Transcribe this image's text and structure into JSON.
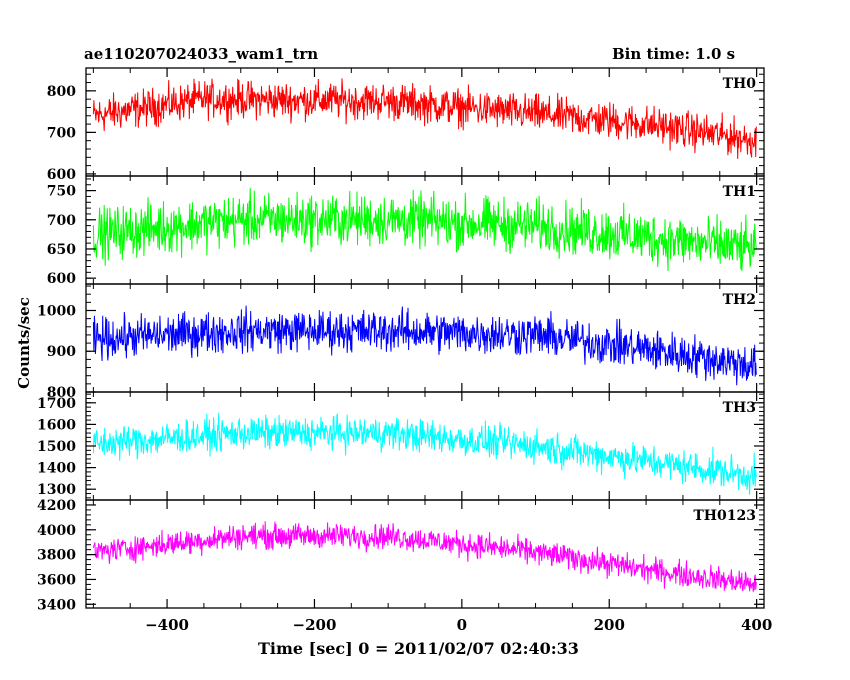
{
  "chart_data": {
    "type": "line",
    "title": "ae110207024033_wam1_trn",
    "subtitle": "Bin time: 1.0 s",
    "xlabel": "Time [sec] 0 = 2011/02/07 02:40:33",
    "ylabel": "Counts/sec",
    "xlim": [
      -510,
      410
    ],
    "xticks": [
      -400,
      -200,
      0,
      200,
      400
    ],
    "panels": [
      {
        "name": "TH0",
        "color": "#ff0000",
        "ylim": [
          595,
          855
        ],
        "yticks": [
          600,
          700,
          800
        ],
        "trend": [
          [
            -500,
            740
          ],
          [
            -350,
            780
          ],
          [
            -100,
            775
          ],
          [
            100,
            745
          ],
          [
            250,
            720
          ],
          [
            400,
            680
          ]
        ],
        "noise": 35
      },
      {
        "name": "TH1",
        "color": "#00ff00",
        "ylim": [
          590,
          775
        ],
        "yticks": [
          600,
          650,
          700,
          750
        ],
        "trend": [
          [
            -500,
            675
          ],
          [
            -300,
            700
          ],
          [
            -100,
            700
          ],
          [
            100,
            690
          ],
          [
            250,
            670
          ],
          [
            400,
            650
          ]
        ],
        "noise": 35
      },
      {
        "name": "TH2",
        "color": "#0000ff",
        "ylim": [
          800,
          1065
        ],
        "yticks": [
          800,
          900,
          1000
        ],
        "trend": [
          [
            -500,
            930
          ],
          [
            -300,
            950
          ],
          [
            -100,
            950
          ],
          [
            100,
            940
          ],
          [
            250,
            905
          ],
          [
            400,
            865
          ]
        ],
        "noise": 40
      },
      {
        "name": "TH3",
        "color": "#00ffff",
        "ylim": [
          1250,
          1750
        ],
        "yticks": [
          1300,
          1400,
          1500,
          1600,
          1700
        ],
        "trend": [
          [
            -500,
            1510
          ],
          [
            -300,
            1560
          ],
          [
            -100,
            1560
          ],
          [
            100,
            1500
          ],
          [
            250,
            1430
          ],
          [
            400,
            1360
          ]
        ],
        "noise": 60
      },
      {
        "name": "TH0123",
        "color": "#ff00ff",
        "ylim": [
          3370,
          4240
        ],
        "yticks": [
          3400,
          3600,
          3800,
          4000,
          4200
        ],
        "trend": [
          [
            -500,
            3820
          ],
          [
            -300,
            3950
          ],
          [
            -100,
            3950
          ],
          [
            100,
            3820
          ],
          [
            250,
            3680
          ],
          [
            400,
            3560
          ]
        ],
        "noise": 80
      }
    ]
  }
}
